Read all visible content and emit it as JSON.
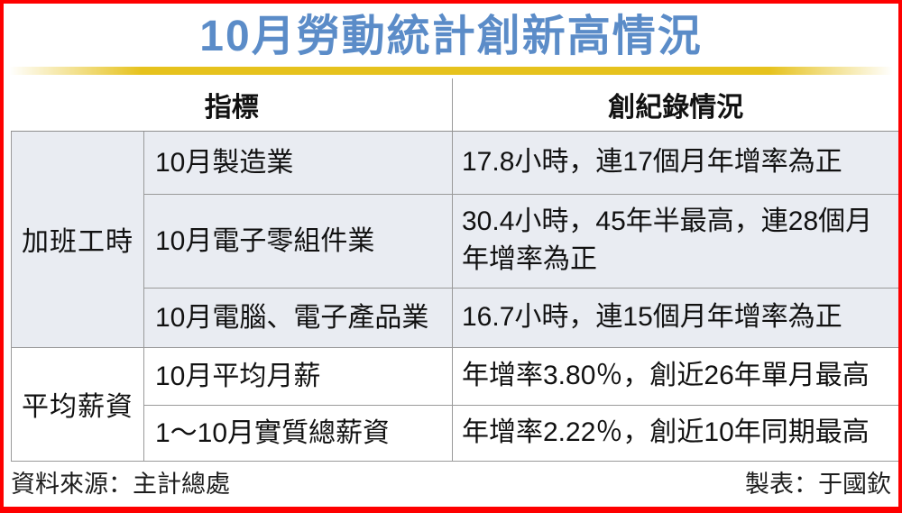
{
  "title": "10月勞動統計創新高情況",
  "colors": {
    "frame_red": "#fe0000",
    "title_blue": "#5b8cc8",
    "bar_gold": "#e6c21d",
    "band_row_bg": "#e9ecf2",
    "grid_gray": "#9a9a9a"
  },
  "table": {
    "headers": {
      "indicator": "指標",
      "record": "創紀錄情況"
    },
    "groups": [
      {
        "label": "加班工時",
        "rows": [
          {
            "indicator": "10月製造業",
            "record": "17.8小時，連17個月年增率為正"
          },
          {
            "indicator": "10月電子零組件業",
            "record": "30.4小時，45年半最高，連28個月年增率為正"
          },
          {
            "indicator": "10月電腦、電子產品業",
            "record": "16.7小時，連15個月年增率為正"
          }
        ]
      },
      {
        "label": "平均薪資",
        "rows": [
          {
            "indicator": "10月平均月薪",
            "record": "年增率3.80％，創近26年單月最高"
          },
          {
            "indicator": "1～10月實質總薪資",
            "record": "年增率2.22％，創近10年同期最高"
          }
        ]
      }
    ]
  },
  "footer": {
    "source": "資料來源：主計總處",
    "credit": "製表：于國欽"
  },
  "chart_data": {
    "type": "table",
    "title": "10月勞動統計創新高情況",
    "columns": [
      "指標",
      "創紀錄情況"
    ],
    "rows": [
      {
        "group": "加班工時",
        "indicator": "10月製造業",
        "record": "17.8小時，連17個月年增率為正",
        "value": 17.8,
        "unit": "小時"
      },
      {
        "group": "加班工時",
        "indicator": "10月電子零組件業",
        "record": "30.4小時，45年半最高，連28個月年增率為正",
        "value": 30.4,
        "unit": "小時"
      },
      {
        "group": "加班工時",
        "indicator": "10月電腦、電子產品業",
        "record": "16.7小時，連15個月年增率為正",
        "value": 16.7,
        "unit": "小時"
      },
      {
        "group": "平均薪資",
        "indicator": "10月平均月薪",
        "record": "年增率3.80％，創近26年單月最高",
        "value": 3.8,
        "unit": "％"
      },
      {
        "group": "平均薪資",
        "indicator": "1～10月實質總薪資",
        "record": "年增率2.22％，創近10年同期最高",
        "value": 2.22,
        "unit": "％"
      }
    ],
    "source": "資料來源：主計總處",
    "credit": "製表：于國欽"
  }
}
